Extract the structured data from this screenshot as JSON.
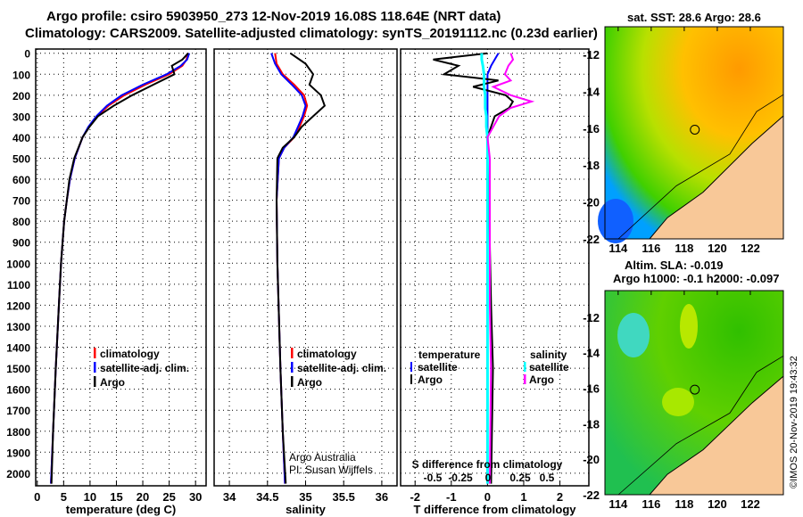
{
  "title_line1": "Argo profile: csiro 5903950_273 12-Nov-2019 16.08S 118.64E (NRT data)",
  "title_line2": "Climatology: CARS2009. Satellite-adjusted climatology: synTS_20191112.nc (0.23d earlier)",
  "credit": "Argo Australia",
  "pi": "PI: Susan Wijffels",
  "stamp": "©IMOS 20-Nov-2019 19:43:32",
  "colors": {
    "clim": "#ff0000",
    "sat": "#0000ff",
    "argo": "#000000",
    "sat_s": "#00ffff",
    "argo_s": "#ff00ff"
  },
  "chart_data": [
    {
      "type": "line",
      "name": "temperature",
      "xlabel": "temperature (deg C)",
      "xlim": [
        -0.3,
        32
      ],
      "ylim": [
        2060,
        -20
      ],
      "xticks": [
        0,
        5,
        10,
        15,
        20,
        25,
        30
      ],
      "yticks": [
        0,
        100,
        200,
        300,
        400,
        500,
        600,
        700,
        800,
        900,
        1000,
        1100,
        1200,
        1300,
        1400,
        1500,
        1600,
        1700,
        1800,
        1900,
        2000
      ],
      "legend": [
        "climatology",
        "satellite-adj. clim.",
        "Argo"
      ],
      "depth": [
        0,
        30,
        60,
        100,
        150,
        200,
        250,
        300,
        350,
        400,
        500,
        600,
        700,
        800,
        1000,
        1200,
        1500,
        1800,
        2050
      ],
      "series": [
        {
          "name": "climatology",
          "values": [
            28.5,
            28.3,
            27.5,
            25,
            20.5,
            16.5,
            13.5,
            11.3,
            9.8,
            8.6,
            7.1,
            6.2,
            5.6,
            5.1,
            4.5,
            4.1,
            3.5,
            3.0,
            2.6
          ]
        },
        {
          "name": "satellite-adj. clim.",
          "values": [
            28.8,
            28.4,
            27.2,
            24.5,
            20,
            16,
            13.2,
            11.2,
            9.7,
            8.6,
            7.1,
            6.2,
            5.6,
            5.1,
            4.5,
            4.1,
            3.5,
            3.0,
            2.6
          ]
        },
        {
          "name": "Argo",
          "values": [
            28.6,
            27.5,
            25.5,
            26,
            22,
            18,
            14.5,
            11.5,
            9.9,
            8.6,
            7.0,
            6.1,
            5.6,
            5.1,
            4.5,
            4.1,
            3.5,
            3.0,
            2.7
          ]
        }
      ]
    },
    {
      "type": "line",
      "name": "salinity",
      "xlabel": "salinity",
      "xlim": [
        33.8,
        36.2
      ],
      "ylim": [
        2060,
        -20
      ],
      "xticks": [
        34,
        34.5,
        35,
        35.5,
        36
      ],
      "legend": [
        "climatology",
        "satellite-adj. clim.",
        "Argo"
      ],
      "depth": [
        0,
        50,
        100,
        150,
        200,
        250,
        300,
        350,
        400,
        450,
        500,
        700,
        1000,
        1500,
        1800,
        2050
      ],
      "series": [
        {
          "name": "climatology",
          "values": [
            34.6,
            34.62,
            34.7,
            34.85,
            34.98,
            35.02,
            34.98,
            34.92,
            34.85,
            34.72,
            34.65,
            34.62,
            34.63,
            34.67,
            34.7,
            34.73
          ]
        },
        {
          "name": "satellite-adj. clim.",
          "values": [
            34.55,
            34.6,
            34.68,
            34.82,
            34.95,
            35.0,
            34.96,
            34.9,
            34.84,
            34.72,
            34.65,
            34.62,
            34.63,
            34.67,
            34.7,
            34.73
          ]
        },
        {
          "name": "Argo",
          "values": [
            34.8,
            35.0,
            35.1,
            35.05,
            35.2,
            35.25,
            35.1,
            34.95,
            34.85,
            34.7,
            34.63,
            34.62,
            34.63,
            34.67,
            34.7,
            34.74
          ]
        }
      ]
    },
    {
      "type": "line",
      "name": "difference",
      "xlabel": "T difference from climatology",
      "x2label": "S difference from climatology",
      "xlim": [
        -2.4,
        2.8
      ],
      "xticks": [
        -2,
        -1,
        0,
        1,
        2
      ],
      "x2ticks": [
        "-0.5",
        "-0.25",
        "0",
        "0.25",
        "0.5"
      ],
      "legend_t": {
        "title": "temperature",
        "items": [
          "satellite",
          "Argo"
        ]
      },
      "legend_s": {
        "title": "salinity",
        "items": [
          "satellite",
          "Argo"
        ]
      },
      "depth": [
        0,
        30,
        60,
        100,
        130,
        160,
        200,
        230,
        260,
        300,
        350,
        400,
        500,
        800,
        1200,
        1500,
        2050
      ],
      "series": [
        {
          "name": "T satellite",
          "values": [
            0.3,
            0.2,
            0.1,
            0,
            0,
            0,
            0,
            0,
            0,
            0,
            0,
            0,
            0,
            0,
            0,
            0,
            0
          ]
        },
        {
          "name": "T Argo",
          "values": [
            0,
            -1.5,
            -0.8,
            -1.2,
            0.3,
            -0.4,
            0.5,
            0.7,
            0.6,
            0.2,
            0.1,
            0,
            0,
            0.05,
            0.1,
            0.15,
            0.1
          ]
        },
        {
          "name": "S satellite",
          "values": [
            -0.05,
            -0.05,
            -0.04,
            -0.03,
            -0.03,
            -0.03,
            -0.02,
            -0.02,
            -0.02,
            -0.01,
            -0.01,
            0,
            0,
            0,
            0,
            0,
            0
          ]
        },
        {
          "name": "S Argo",
          "values": [
            0.2,
            0.22,
            0.18,
            0.15,
            0.2,
            0.05,
            0.2,
            0.38,
            0.2,
            0.1,
            0.05,
            0,
            0.02,
            0.02,
            0.02,
            0.03,
            0.02
          ]
        }
      ]
    }
  ],
  "map_sst": {
    "title": "sat. SST: 28.6 Argo: 28.6",
    "xticks": [
      "114",
      "116",
      "118",
      "120",
      "122"
    ],
    "yticks": [
      "-12",
      "-14",
      "-16",
      "-18",
      "-20",
      "-22"
    ]
  },
  "map_sla": {
    "title1": "Altim. SLA: -0.019",
    "title2": "Argo h1000: -0.1 h2000: -0.097",
    "xticks": [
      "114",
      "116",
      "118",
      "120",
      "122"
    ],
    "yticks": [
      "-12",
      "-14",
      "-16",
      "-18",
      "-20",
      "-22"
    ]
  }
}
